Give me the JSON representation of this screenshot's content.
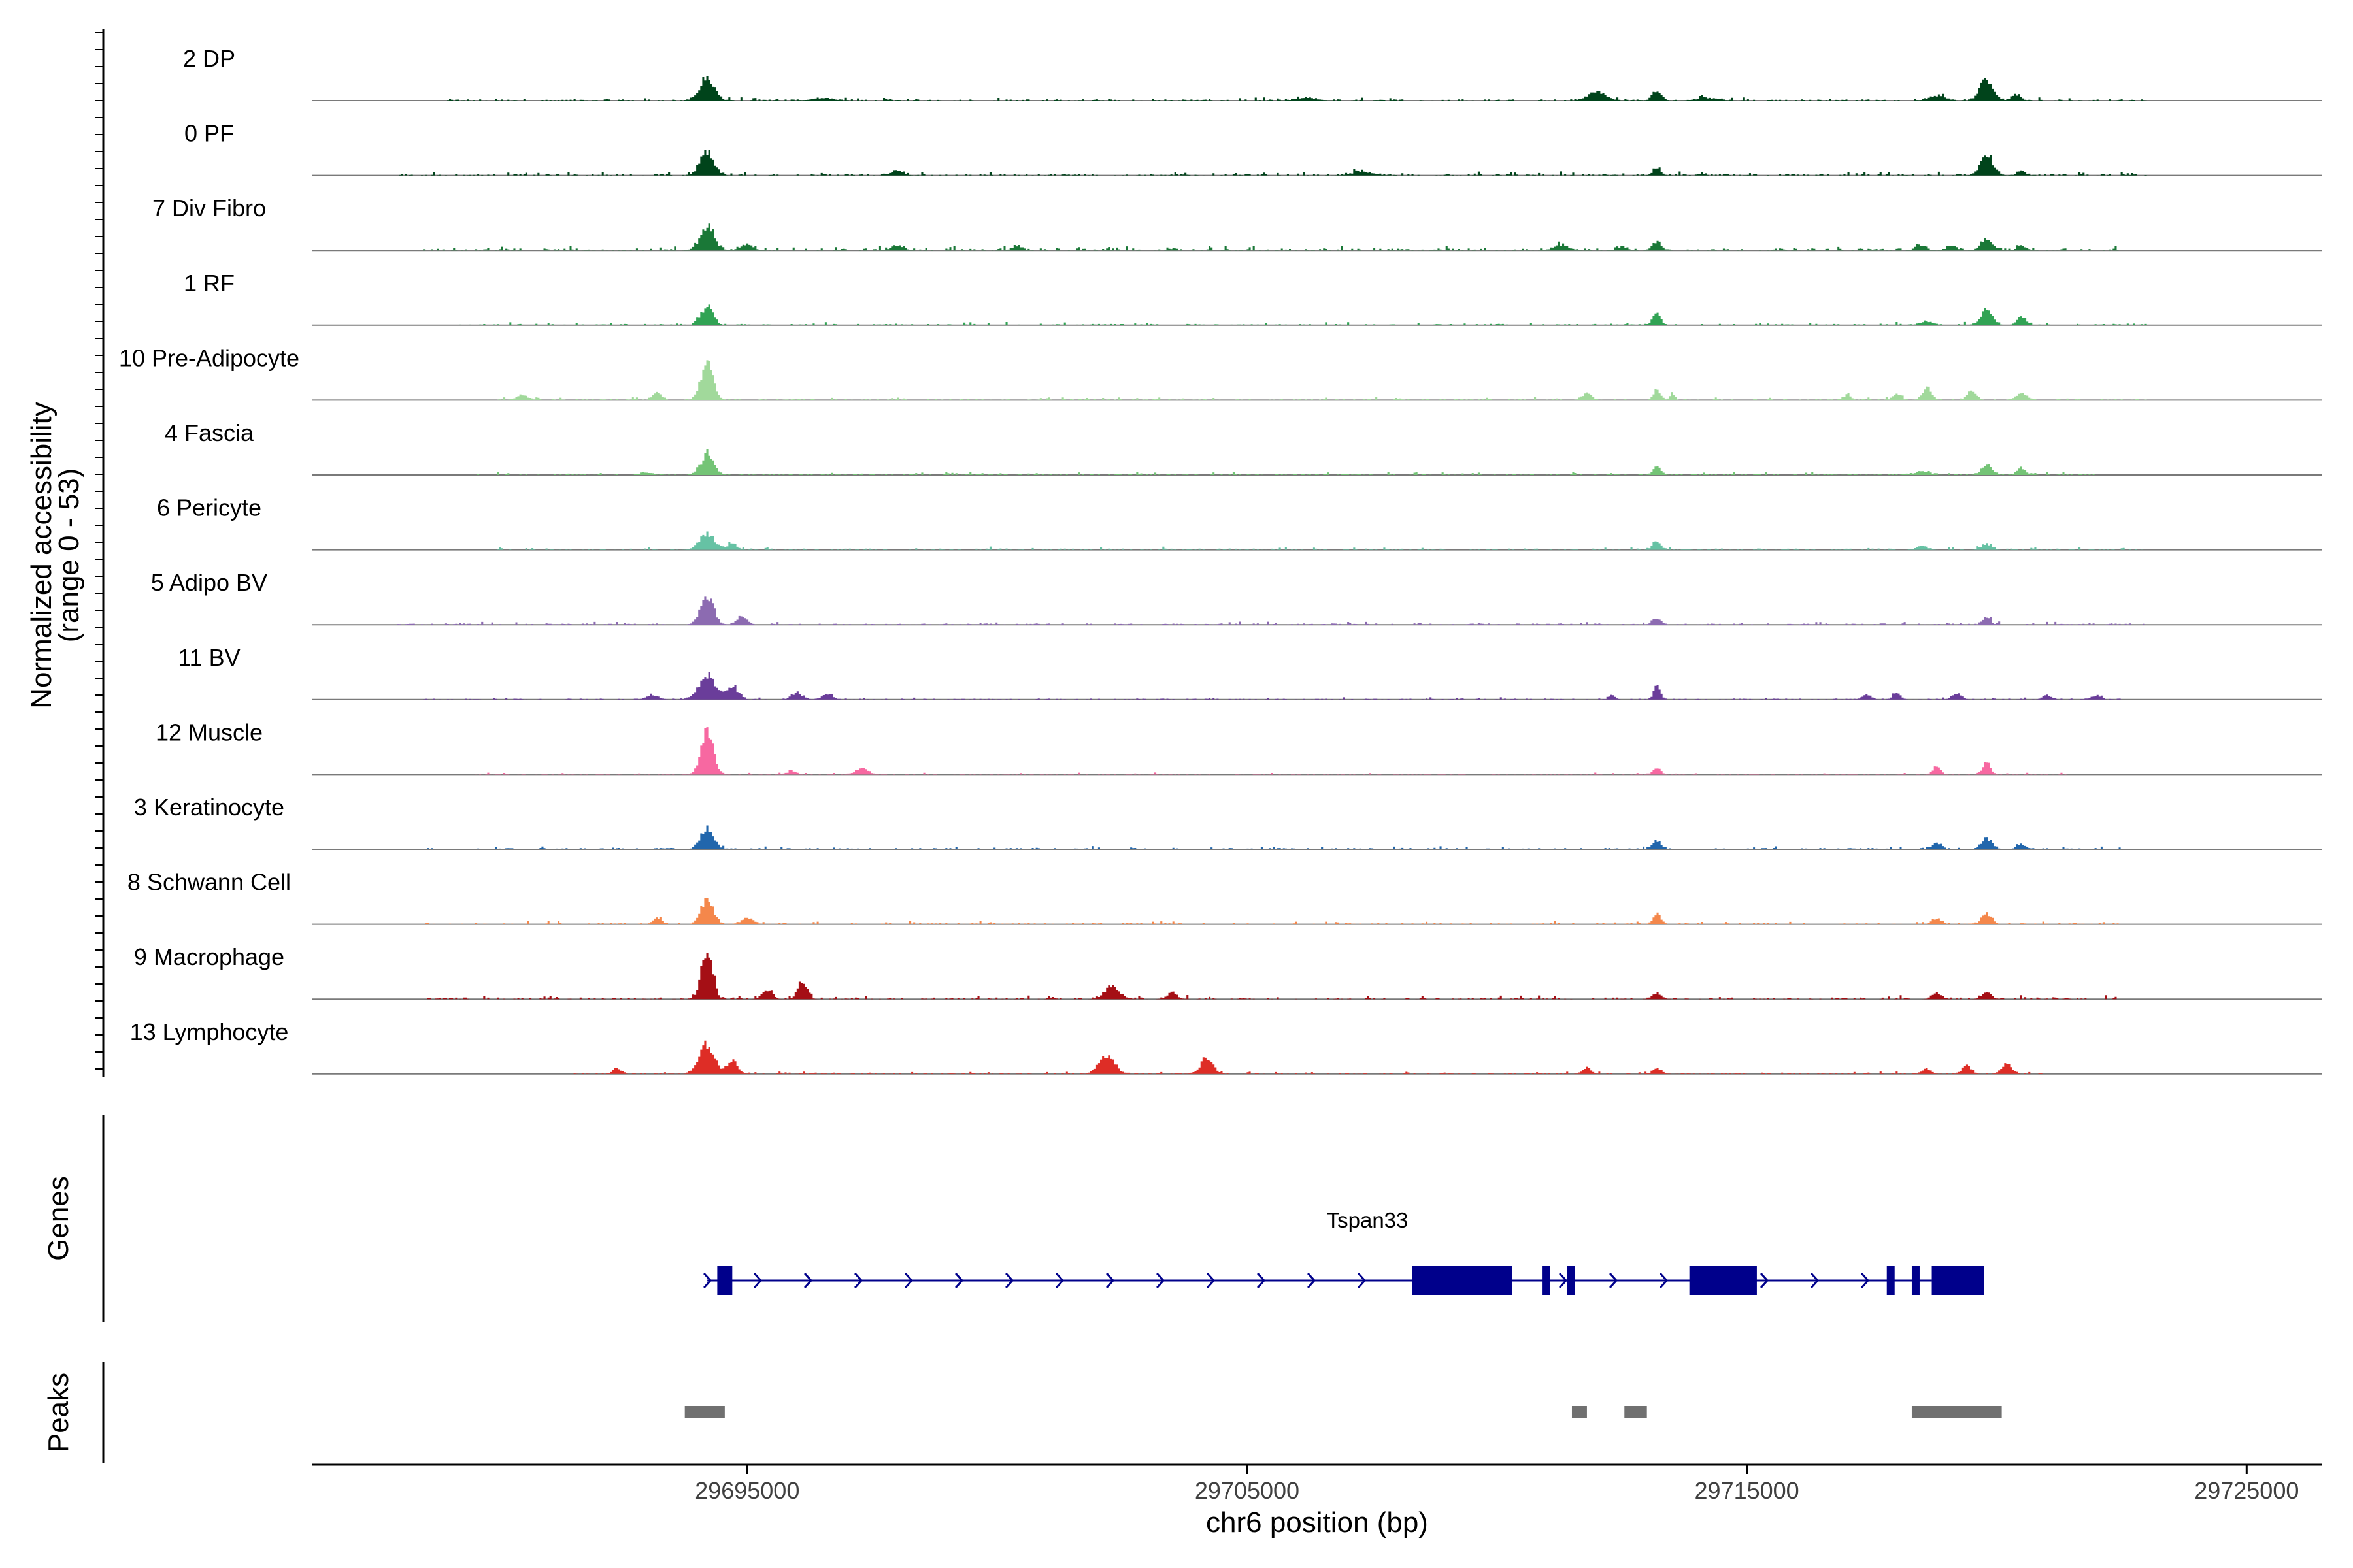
{
  "chart_data": {
    "type": "area",
    "title": "",
    "ylabel_line1": "Normalized accessibility",
    "ylabel_line2": "(range 0 - 53)",
    "ylim": [
      0,
      53
    ],
    "xlabel": "chr6 position (bp)",
    "xlim": [
      29686300,
      29726500
    ],
    "x_ticks": [
      29695000,
      29705000,
      29715000,
      29725000
    ],
    "x_tick_labels": [
      "29695000",
      "29705000",
      "29715000",
      "29725000"
    ],
    "tracks": [
      {
        "name": "2 DP",
        "color": "#00441b",
        "peaks": [
          [
            29694200,
            40,
            140
          ],
          [
            29696500,
            4,
            200
          ],
          [
            29706200,
            4,
            200
          ],
          [
            29712000,
            14,
            180
          ],
          [
            29713200,
            15,
            90
          ],
          [
            29714200,
            4,
            200
          ],
          [
            29718800,
            8,
            150
          ],
          [
            29719800,
            36,
            130
          ],
          [
            29720400,
            10,
            90
          ]
        ],
        "noise": [
          [
            29689000,
            29723000,
            2
          ]
        ]
      },
      {
        "name": "0 PF",
        "color": "#00441b",
        "peaks": [
          [
            29694200,
            40,
            130
          ],
          [
            29698000,
            8,
            120
          ],
          [
            29707300,
            6,
            200
          ],
          [
            29713200,
            12,
            80
          ],
          [
            29719800,
            30,
            130
          ],
          [
            29720500,
            8,
            80
          ]
        ],
        "noise": [
          [
            29688000,
            29723000,
            2.5
          ]
        ]
      },
      {
        "name": "7 Div Fibro",
        "color": "#1a7837",
        "peaks": [
          [
            29694200,
            38,
            140
          ],
          [
            29695000,
            10,
            120
          ],
          [
            29698000,
            8,
            120
          ],
          [
            29700400,
            8,
            90
          ],
          [
            29711300,
            8,
            150
          ],
          [
            29712500,
            6,
            100
          ],
          [
            29713200,
            14,
            90
          ],
          [
            29718500,
            8,
            100
          ],
          [
            29719100,
            8,
            90
          ],
          [
            29719800,
            16,
            120
          ],
          [
            29720500,
            8,
            90
          ]
        ],
        "noise": [
          [
            29688500,
            29722500,
            3
          ]
        ]
      },
      {
        "name": "1 RF",
        "color": "#31a354",
        "peaks": [
          [
            29694200,
            32,
            120
          ],
          [
            29713200,
            18,
            80
          ],
          [
            29718600,
            6,
            140
          ],
          [
            29719800,
            24,
            120
          ],
          [
            29720500,
            14,
            90
          ]
        ],
        "noise": [
          [
            29689000,
            29723000,
            2
          ]
        ]
      },
      {
        "name": "10 Pre-Adipocyte",
        "color": "#a1d99b",
        "peaks": [
          [
            29694200,
            66,
            120
          ],
          [
            29693200,
            12,
            90
          ],
          [
            29690500,
            8,
            120
          ],
          [
            29711800,
            10,
            100
          ],
          [
            29713200,
            18,
            70
          ],
          [
            29713500,
            12,
            50
          ],
          [
            29717000,
            8,
            80
          ],
          [
            29718000,
            10,
            80
          ],
          [
            29718600,
            22,
            90
          ],
          [
            29719500,
            14,
            90
          ],
          [
            29720500,
            10,
            120
          ]
        ],
        "noise": [
          [
            29690000,
            29723000,
            2
          ]
        ]
      },
      {
        "name": "4 Fascia",
        "color": "#74c476",
        "peaks": [
          [
            29694200,
            36,
            120
          ],
          [
            29693000,
            4,
            100
          ],
          [
            29713200,
            14,
            80
          ],
          [
            29718500,
            6,
            140
          ],
          [
            29719800,
            16,
            110
          ],
          [
            29720500,
            10,
            90
          ]
        ],
        "noise": [
          [
            29689500,
            29722000,
            2
          ]
        ]
      },
      {
        "name": "6 Pericyte",
        "color": "#66c2a4",
        "peaks": [
          [
            29694200,
            26,
            150
          ],
          [
            29694700,
            10,
            100
          ],
          [
            29713200,
            14,
            80
          ],
          [
            29718500,
            6,
            110
          ],
          [
            29719800,
            10,
            100
          ]
        ],
        "noise": [
          [
            29690000,
            29723000,
            2
          ]
        ]
      },
      {
        "name": "5 Adipo BV",
        "color": "#8c6bb1",
        "peaks": [
          [
            29694200,
            48,
            130
          ],
          [
            29694900,
            14,
            100
          ],
          [
            29713200,
            10,
            90
          ],
          [
            29719800,
            12,
            80
          ]
        ],
        "noise": [
          [
            29688000,
            29723000,
            2
          ]
        ]
      },
      {
        "name": "11 BV",
        "color": "#6a3d9a",
        "peaks": [
          [
            29694200,
            42,
            160
          ],
          [
            29694700,
            22,
            120
          ],
          [
            29693100,
            8,
            120
          ],
          [
            29696000,
            10,
            110
          ],
          [
            29696600,
            8,
            110
          ],
          [
            29713200,
            24,
            60
          ],
          [
            29712300,
            8,
            60
          ],
          [
            29717400,
            8,
            90
          ],
          [
            29718000,
            10,
            80
          ],
          [
            29719200,
            10,
            100
          ],
          [
            29721000,
            8,
            80
          ],
          [
            29722000,
            6,
            80
          ]
        ],
        "noise": [
          [
            29688500,
            29722500,
            1.5
          ]
        ]
      },
      {
        "name": "12 Muscle",
        "color": "#f768a1",
        "peaks": [
          [
            29694200,
            76,
            120
          ],
          [
            29697300,
            10,
            120
          ],
          [
            29695900,
            6,
            90
          ],
          [
            29713200,
            10,
            80
          ],
          [
            29718800,
            12,
            80
          ],
          [
            29719800,
            20,
            80
          ]
        ],
        "noise": [
          [
            29689500,
            29721500,
            1.2
          ]
        ]
      },
      {
        "name": "3 Keratinocyte",
        "color": "#2166ac",
        "peaks": [
          [
            29694200,
            34,
            130
          ],
          [
            29713200,
            14,
            90
          ],
          [
            29718800,
            10,
            100
          ],
          [
            29719800,
            18,
            110
          ],
          [
            29720500,
            8,
            80
          ]
        ],
        "noise": [
          [
            29688500,
            29722500,
            2
          ]
        ]
      },
      {
        "name": "8 Schwann Cell",
        "color": "#f4874b",
        "peaks": [
          [
            29694200,
            44,
            120
          ],
          [
            29693200,
            10,
            90
          ],
          [
            29695000,
            10,
            120
          ],
          [
            29713200,
            16,
            80
          ],
          [
            29718800,
            10,
            90
          ],
          [
            29719800,
            18,
            100
          ]
        ],
        "noise": [
          [
            29688500,
            29722500,
            2
          ]
        ]
      },
      {
        "name": "9 Macrophage",
        "color": "#a50f15",
        "peaks": [
          [
            29694200,
            82,
            110
          ],
          [
            29696100,
            28,
            90
          ],
          [
            29695400,
            14,
            100
          ],
          [
            29702300,
            22,
            140
          ],
          [
            29703500,
            10,
            100
          ],
          [
            29713200,
            10,
            90
          ],
          [
            29718800,
            10,
            90
          ],
          [
            29719800,
            10,
            100
          ]
        ],
        "noise": [
          [
            29688500,
            29722500,
            2.5
          ]
        ]
      },
      {
        "name": "13 Lymphocyte",
        "color": "#de2d26",
        "peaks": [
          [
            29694200,
            48,
            150
          ],
          [
            29694700,
            22,
            100
          ],
          [
            29692400,
            10,
            80
          ],
          [
            29702200,
            32,
            150
          ],
          [
            29704200,
            28,
            120
          ],
          [
            29711800,
            10,
            80
          ],
          [
            29713200,
            10,
            80
          ],
          [
            29718600,
            8,
            90
          ],
          [
            29719400,
            14,
            90
          ],
          [
            29720200,
            16,
            100
          ]
        ],
        "noise": [
          [
            29691500,
            29721000,
            1.5
          ]
        ]
      }
    ],
    "genes_label": "Genes",
    "gene": {
      "name": "Tspan33",
      "strand": "+",
      "start": 29694200,
      "end": 29718700,
      "exons": [
        [
          29694400,
          29694700
        ],
        [
          29708300,
          29710300
        ],
        [
          29710900,
          29711050
        ],
        [
          29711400,
          29711470
        ],
        [
          29713850,
          29715200
        ],
        [
          29717800,
          29717900
        ],
        [
          29718300,
          29718400
        ],
        [
          29718700,
          29719750
        ]
      ]
    },
    "peaks_label": "Peaks",
    "peak_regions": [
      [
        29693750,
        29694550
      ],
      [
        29711500,
        29711800
      ],
      [
        29712550,
        29713000
      ],
      [
        29718300,
        29720100
      ]
    ]
  }
}
